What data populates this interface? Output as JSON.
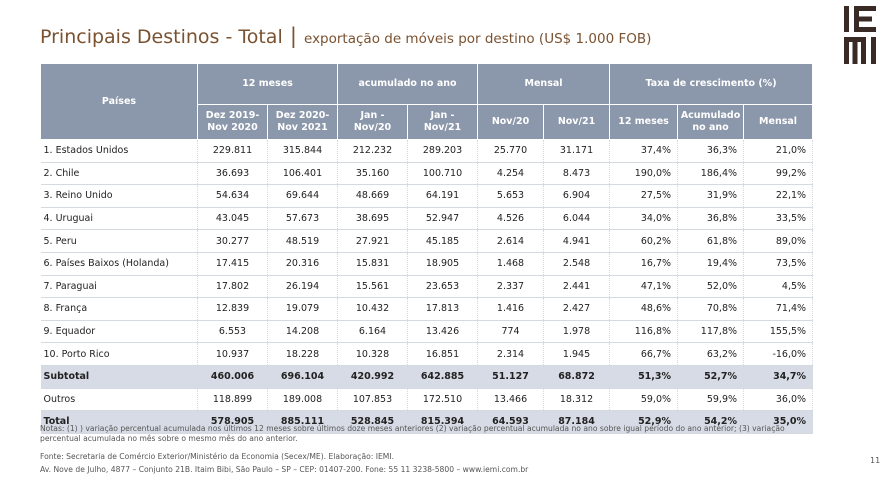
{
  "title": {
    "main": "Principais Destinos - Total",
    "separator": "|",
    "sub": "exportação de móveis por destino (US$ 1.000 FOB)"
  },
  "logo": {
    "text": "IEMI",
    "color": "#3a2a25"
  },
  "table": {
    "header_countries": "Países",
    "groups": [
      "12 meses",
      "acumulado no ano",
      "Mensal",
      "Taxa de crescimento (%)"
    ],
    "subheaders": [
      "Dez 2019-\nNov 2020",
      "Dez 2020-\nNov 2021",
      "Jan -\nNov/20",
      "Jan -\nNov/21",
      "Nov/20",
      "Nov/21",
      "12 meses",
      "Acumulado\nno ano",
      "Mensal"
    ],
    "rows": [
      {
        "country": "1. Estados Unidos",
        "v": [
          "229.811",
          "315.844",
          "212.232",
          "289.203",
          "25.770",
          "31.171",
          "37,4%",
          "36,3%",
          "21,0%"
        ]
      },
      {
        "country": "2. Chile",
        "v": [
          "36.693",
          "106.401",
          "35.160",
          "100.710",
          "4.254",
          "8.473",
          "190,0%",
          "186,4%",
          "99,2%"
        ]
      },
      {
        "country": "3. Reino Unido",
        "v": [
          "54.634",
          "69.644",
          "48.669",
          "64.191",
          "5.653",
          "6.904",
          "27,5%",
          "31,9%",
          "22,1%"
        ]
      },
      {
        "country": "4. Uruguai",
        "v": [
          "43.045",
          "57.673",
          "38.695",
          "52.947",
          "4.526",
          "6.044",
          "34,0%",
          "36,8%",
          "33,5%"
        ]
      },
      {
        "country": "5. Peru",
        "v": [
          "30.277",
          "48.519",
          "27.921",
          "45.185",
          "2.614",
          "4.941",
          "60,2%",
          "61,8%",
          "89,0%"
        ]
      },
      {
        "country": "6. Países Baixos (Holanda)",
        "v": [
          "17.415",
          "20.316",
          "15.831",
          "18.905",
          "1.468",
          "2.548",
          "16,7%",
          "19,4%",
          "73,5%"
        ]
      },
      {
        "country": "7. Paraguai",
        "v": [
          "17.802",
          "26.194",
          "15.561",
          "23.653",
          "2.337",
          "2.441",
          "47,1%",
          "52,0%",
          "4,5%"
        ]
      },
      {
        "country": "8. França",
        "v": [
          "12.839",
          "19.079",
          "10.432",
          "17.813",
          "1.416",
          "2.427",
          "48,6%",
          "70,8%",
          "71,4%"
        ]
      },
      {
        "country": "9. Equador",
        "v": [
          "6.553",
          "14.208",
          "6.164",
          "13.426",
          "774",
          "1.978",
          "116,8%",
          "117,8%",
          "155,5%"
        ]
      },
      {
        "country": "10. Porto Rico",
        "v": [
          "10.937",
          "18.228",
          "10.328",
          "16.851",
          "2.314",
          "1.945",
          "66,7%",
          "63,2%",
          "-16,0%"
        ]
      }
    ],
    "subtotal": {
      "label": "Subtotal",
      "v": [
        "460.006",
        "696.104",
        "420.992",
        "642.885",
        "51.127",
        "68.872",
        "51,3%",
        "52,7%",
        "34,7%"
      ]
    },
    "outros": {
      "label": "Outros",
      "v": [
        "118.899",
        "189.008",
        "107.853",
        "172.510",
        "13.466",
        "18.312",
        "59,0%",
        "59,9%",
        "36,0%"
      ]
    },
    "total": {
      "label": "Total",
      "v": [
        "578.905",
        "885.111",
        "528.845",
        "815.394",
        "64.593",
        "87.184",
        "52,9%",
        "54,2%",
        "35,0%"
      ]
    }
  },
  "notes": "Notas: (1) ) variação percentual acumulada nos últimos 12 meses sobre últimos doze meses anteriores (2) variação percentual acumulada no ano sobre igual período do ano anterior; (3) variação percentual acumulada no mês sobre o mesmo mês do ano anterior.",
  "source": "Fonte: Secretaria de Comércio Exterior/Ministério da Economia (Secex/ME). Elaboração: IEMI.",
  "address": "Av. Nove de Julho, 4877 – Conjunto 21B. Itaim Bibi, São Paulo – SP – CEP: 01407-200. Fone: 55 11 3238-5800 – www.iemi.com.br",
  "page_number": "11"
}
